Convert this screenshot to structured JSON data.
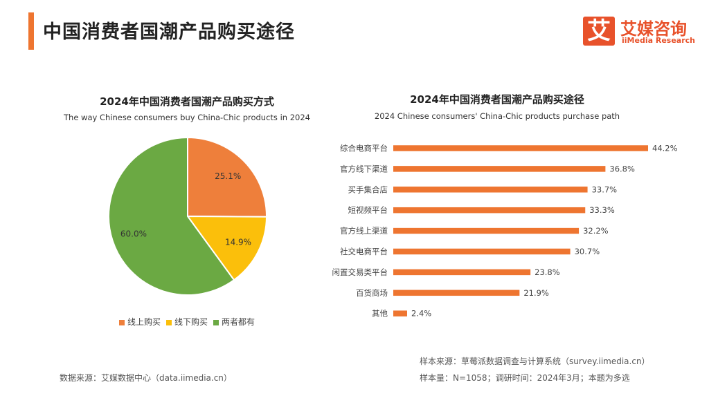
{
  "header": {
    "title": "中国消费者国潮产品购买途径"
  },
  "logo": {
    "mark": "艾",
    "name_cn": "艾媒咨询",
    "name_en": "iiMedia Research"
  },
  "colors": {
    "accent": "#ee7530",
    "logo": "#e8522b",
    "bar": "#ee7530"
  },
  "chart_data": [
    {
      "type": "pie",
      "title": "2024年中国消费者国潮产品购买方式",
      "subtitle": "The way Chinese consumers buy China-Chic products in 2024",
      "categories": [
        "线上购买",
        "线下购买",
        "两者都有"
      ],
      "values": [
        25.1,
        14.9,
        60.0
      ],
      "labels": [
        "25.1%",
        "14.9%",
        "60.0%"
      ],
      "colors": [
        "#ee7f3b",
        "#fbbf0b",
        "#6ba943"
      ],
      "legend": "bottom"
    },
    {
      "type": "bar",
      "orientation": "horizontal",
      "title": "2024年中国消费者国潮产品购买途径",
      "subtitle": "2024 Chinese consumers' China-Chic products purchase path",
      "categories": [
        "综合电商平台",
        "官方线下渠道",
        "买手集合店",
        "短视频平台",
        "官方线上渠道",
        "社交电商平台",
        "闲置交易类平台",
        "百货商场",
        "其他"
      ],
      "values": [
        44.2,
        36.8,
        33.7,
        33.3,
        32.2,
        30.7,
        23.8,
        21.9,
        2.4
      ],
      "labels": [
        "44.2%",
        "36.8%",
        "33.7%",
        "33.3%",
        "32.2%",
        "30.7%",
        "23.8%",
        "21.9%",
        "2.4%"
      ],
      "color": "#ee7530",
      "grid": false
    }
  ],
  "notes": {
    "left": "数据来源：艾媒数据中心（data.iimedia.cn）",
    "right_1": "样本来源：草莓派数据调查与计算系统（survey.iimedia.cn）",
    "right_2": "样本量：N=1058；调研时间：2024年3月；本题为多选"
  }
}
